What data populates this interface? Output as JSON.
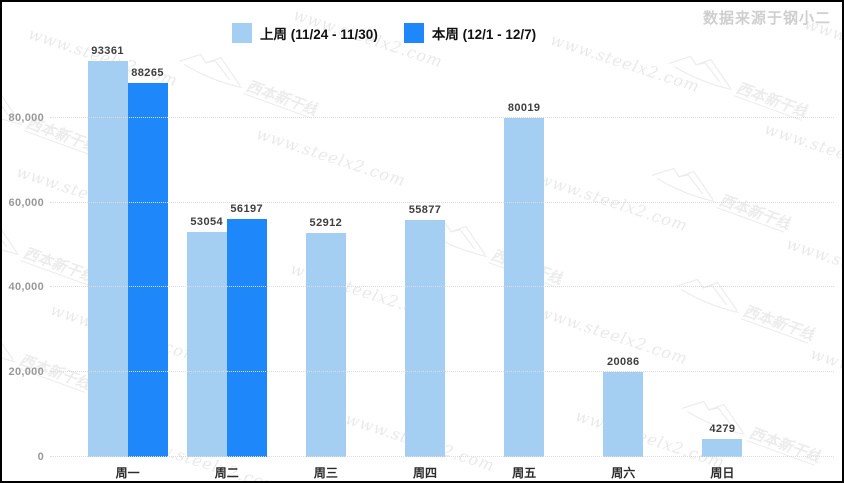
{
  "header": {
    "source": "数据来源于钢小二"
  },
  "watermark": {
    "text": "www.steelx2.com",
    "logo_text": "西本新干线"
  },
  "chart_data": {
    "type": "bar",
    "title": "",
    "xlabel": "",
    "ylabel": "",
    "categories": [
      "周一",
      "周二",
      "周三",
      "周四",
      "周五",
      "周六",
      "周日"
    ],
    "series": [
      {
        "name": "上周 (11/24 - 11/30)",
        "color": "#a5cff2",
        "values": [
          93361,
          53054,
          52912,
          55877,
          80019,
          20086,
          4279
        ]
      },
      {
        "name": "本周 (12/1 - 12/7)",
        "color": "#1e88fa",
        "values": [
          88265,
          56197,
          null,
          null,
          null,
          null,
          null
        ]
      }
    ],
    "ylim": [
      0,
      100000
    ],
    "ytick_interval": 20000,
    "ytick_labels": [
      "0",
      "20,000",
      "40,000",
      "60,000",
      "80,000"
    ],
    "grid": "horizontal-dotted",
    "legend_position": "top-center"
  }
}
